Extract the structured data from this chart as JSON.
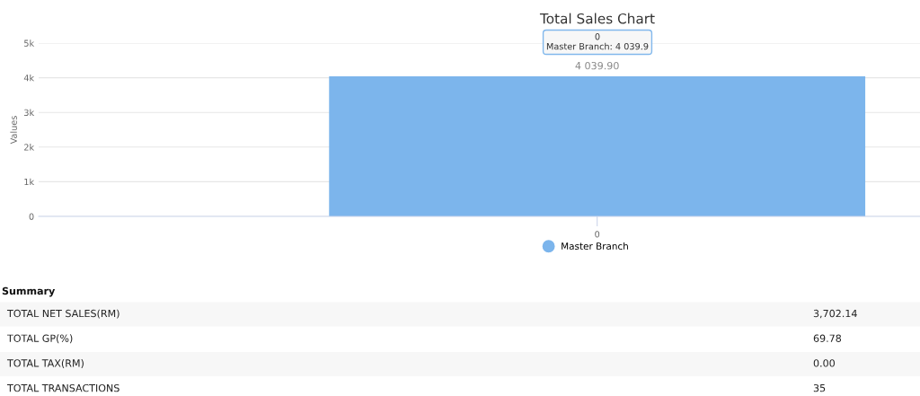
{
  "chart_data": [
    {
      "type": "bar",
      "title": "Total Sales Chart",
      "ylabel": "Values",
      "categories": [
        "0"
      ],
      "series": [
        {
          "name": "Master Branch",
          "color": "#7cb5ec",
          "values": [
            4039.9
          ],
          "value_labels": [
            "4 039.90"
          ]
        }
      ],
      "ylim": [
        0,
        5000
      ],
      "yticks": [
        {
          "value": 0,
          "label": "0"
        },
        {
          "value": 1000,
          "label": "1k"
        },
        {
          "value": 2000,
          "label": "2k"
        },
        {
          "value": 3000,
          "label": "3k"
        },
        {
          "value": 4000,
          "label": "4k"
        },
        {
          "value": 5000,
          "label": "5k"
        }
      ],
      "grid": "y",
      "legend": "bottom",
      "marker": "circle",
      "annotations": [
        "0\nMaster Branch: 4 039.9"
      ]
    },
    {
      "type": "other",
      "title": "Summary",
      "annotations": [
        "TOTAL NET SALES(RM)",
        "3,702.14",
        "TOTAL GP(%)",
        "69.78",
        "TOTAL TAX(RM)",
        "0.00",
        "TOTAL TRANSACTIONS",
        "35"
      ]
    }
  ]
}
